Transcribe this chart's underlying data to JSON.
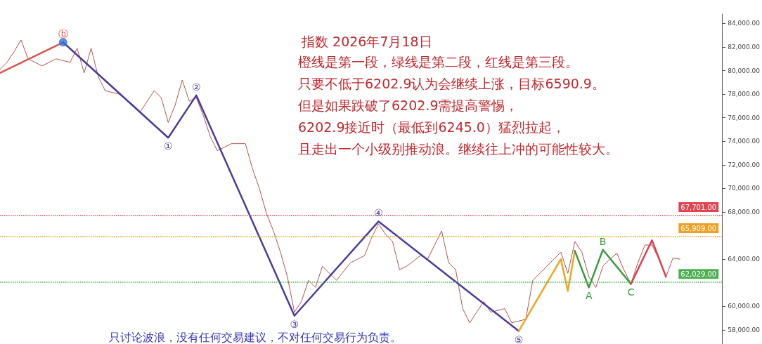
{
  "chart_data": {
    "type": "line",
    "title": "指数 2026年7月18日",
    "annotations": [
      "橙线是第一段，绿线是第二段，红线是第三段。",
      "只要不低于6202.9认为会继续上涨，目标6590.9。",
      "但是如果跌破了6202.9需提高警惕，",
      "6202.9接近时（最低到6245.0）猛烈拉起，",
      "且走出一个小级别推动浪。继续往上冲的可能性较大。",
      "只讨论波浪，没有任何交易建议，不对任何交易行为负责。",
      {
        "text": "ⓑ",
        "y": 82400
      },
      {
        "text": "①",
        "y": 74300
      },
      {
        "text": "②",
        "y": 77900
      },
      {
        "text": "③",
        "y": 59200
      },
      {
        "text": "④",
        "y": 67200
      },
      {
        "text": "⑤",
        "y": 57900
      },
      {
        "text": "A",
        "y": 61600
      },
      {
        "text": "B",
        "y": 64800
      },
      {
        "text": "C",
        "y": 61900
      }
    ],
    "categories": [
      null,
      null,
      null,
      null,
      null,
      null,
      null,
      null,
      null,
      null,
      null,
      null,
      null,
      null,
      null,
      null,
      null,
      null,
      null,
      null,
      null,
      null,
      null,
      null,
      null,
      null,
      null,
      null,
      null,
      null,
      null,
      null,
      null,
      null,
      null,
      null,
      null,
      null,
      null,
      null,
      null,
      null,
      null,
      null,
      null,
      null,
      null,
      null,
      null,
      null,
      null,
      null,
      null,
      null,
      null,
      null,
      null,
      null,
      null,
      null,
      null,
      null,
      null,
      null,
      null,
      null,
      null,
      null,
      null,
      null,
      null,
      null,
      null,
      null,
      null,
      null,
      null,
      null,
      null,
      null,
      null,
      null,
      null,
      null,
      null,
      null,
      null,
      null,
      null,
      null,
      null,
      null,
      null,
      null,
      null,
      null,
      null,
      null,
      null,
      null,
      null,
      null,
      null,
      null
    ],
    "series": [
      {
        "color": "#b5524d",
        "values": [
          80100,
          80700,
          81600,
          82600,
          81000,
          null,
          80400,
          null,
          81000,
          null,
          80700,
          81900,
          79800,
          81900,
          79500,
          78300,
          null,
          78000,
          null,
          77100,
          76500,
          null,
          78300,
          77700,
          75600,
          77100,
          79200,
          77400,
          77700,
          76200,
          74400,
          73200,
          null,
          73800,
          null,
          73800,
          71700,
          70000,
          67900,
          66400,
          64600,
          62500,
          59500,
          60400,
          62200,
          61600,
          63400,
          null,
          62200,
          null,
          63700,
          64000,
          64300,
          65800,
          67000,
          66100,
          65500,
          63100,
          63400,
          null,
          64300,
          64000,
          65200,
          66400,
          63700,
          63100,
          59800,
          58600,
          59500,
          60400,
          59500,
          null,
          59800,
          58600,
          null,
          58900,
          62200,
          null,
          63400,
          64000,
          64600,
          62800,
          65500,
          64600,
          62500,
          61600,
          63400,
          64000,
          64500,
          63100,
          61900,
          63700,
          65200,
          65200,
          64000,
          62500,
          64100,
          64000,
          null,
          null,
          null,
          null,
          null,
          null
        ]
      },
      {
        "color": "#d9534f",
        "values": [
          79800,
          null,
          null,
          null,
          null,
          null,
          null,
          null,
          null,
          82400,
          null,
          null,
          null,
          null,
          null,
          null,
          null,
          null,
          null,
          null,
          null,
          null,
          null,
          null,
          null,
          null,
          null,
          null,
          null,
          null,
          null,
          null,
          null,
          null,
          null,
          null,
          null,
          null,
          null,
          null,
          null,
          null,
          null,
          null,
          null,
          null,
          null,
          null,
          null,
          null,
          null,
          null,
          null,
          null,
          null,
          null,
          null,
          null,
          null,
          null,
          null,
          null,
          null,
          null,
          null,
          null,
          null,
          null,
          null,
          null,
          null,
          null,
          null,
          null,
          null,
          null,
          null,
          null,
          null,
          null,
          null,
          null,
          null,
          null,
          null,
          null,
          null,
          null,
          null,
          null,
          null,
          null,
          null,
          null,
          null,
          null,
          null,
          null,
          null,
          null,
          null,
          null,
          null,
          null
        ]
      },
      {
        "color": "#4b3c9a",
        "values": [
          null,
          null,
          null,
          null,
          null,
          null,
          null,
          null,
          null,
          82400,
          null,
          null,
          null,
          null,
          null,
          null,
          null,
          null,
          null,
          null,
          null,
          null,
          null,
          null,
          74300,
          null,
          null,
          null,
          77900,
          null,
          null,
          null,
          null,
          null,
          null,
          null,
          null,
          null,
          null,
          null,
          null,
          null,
          59200,
          null,
          null,
          null,
          null,
          null,
          null,
          null,
          null,
          null,
          null,
          null,
          67200,
          null,
          null,
          null,
          null,
          null,
          null,
          null,
          null,
          null,
          null,
          null,
          null,
          null,
          null,
          null,
          null,
          null,
          null,
          null,
          57900,
          null,
          null,
          null,
          null,
          null,
          null,
          null,
          null,
          null,
          null,
          null,
          null,
          null,
          null,
          null,
          null,
          null,
          null,
          null,
          null,
          null,
          null,
          null,
          null,
          null,
          null,
          null,
          null,
          null
        ]
      },
      {
        "color": "#f0a520",
        "values": [
          null,
          null,
          null,
          null,
          null,
          null,
          null,
          null,
          null,
          null,
          null,
          null,
          null,
          null,
          null,
          null,
          null,
          null,
          null,
          null,
          null,
          null,
          null,
          null,
          null,
          null,
          null,
          null,
          null,
          null,
          null,
          null,
          null,
          null,
          null,
          null,
          null,
          null,
          null,
          null,
          null,
          null,
          null,
          null,
          null,
          null,
          null,
          null,
          null,
          null,
          null,
          null,
          null,
          null,
          null,
          null,
          null,
          null,
          null,
          null,
          null,
          null,
          null,
          null,
          null,
          null,
          null,
          null,
          null,
          null,
          null,
          null,
          null,
          null,
          57900,
          null,
          null,
          null,
          null,
          null,
          64000,
          61300,
          64700,
          null,
          null,
          null,
          null,
          null,
          null,
          null,
          null,
          null,
          null,
          null,
          null,
          null,
          null,
          null,
          null,
          null,
          null,
          null,
          null,
          null
        ]
      },
      {
        "color": "#3c9a3c",
        "values": [
          null,
          null,
          null,
          null,
          null,
          null,
          null,
          null,
          null,
          null,
          null,
          null,
          null,
          null,
          null,
          null,
          null,
          null,
          null,
          null,
          null,
          null,
          null,
          null,
          null,
          null,
          null,
          null,
          null,
          null,
          null,
          null,
          null,
          null,
          null,
          null,
          null,
          null,
          null,
          null,
          null,
          null,
          null,
          null,
          null,
          null,
          null,
          null,
          null,
          null,
          null,
          null,
          null,
          null,
          null,
          null,
          null,
          null,
          null,
          null,
          null,
          null,
          null,
          null,
          null,
          null,
          null,
          null,
          null,
          null,
          null,
          null,
          null,
          null,
          null,
          null,
          null,
          null,
          null,
          null,
          null,
          null,
          64700,
          null,
          61600,
          null,
          64800,
          null,
          null,
          null,
          61900,
          null,
          null,
          null,
          null,
          null,
          null,
          null,
          null,
          null,
          null,
          null,
          null,
          null
        ]
      },
      {
        "color": "#e04050",
        "values": [
          null,
          null,
          null,
          null,
          null,
          null,
          null,
          null,
          null,
          null,
          null,
          null,
          null,
          null,
          null,
          null,
          null,
          null,
          null,
          null,
          null,
          null,
          null,
          null,
          null,
          null,
          null,
          null,
          null,
          null,
          null,
          null,
          null,
          null,
          null,
          null,
          null,
          null,
          null,
          null,
          null,
          null,
          null,
          null,
          null,
          null,
          null,
          null,
          null,
          null,
          null,
          null,
          null,
          null,
          null,
          null,
          null,
          null,
          null,
          null,
          null,
          null,
          null,
          null,
          null,
          null,
          null,
          null,
          null,
          null,
          null,
          null,
          null,
          null,
          null,
          null,
          null,
          null,
          null,
          null,
          null,
          null,
          null,
          null,
          null,
          null,
          null,
          null,
          null,
          null,
          61900,
          null,
          null,
          65600,
          null,
          62500,
          null,
          null,
          null,
          null,
          null,
          null,
          null,
          null
        ]
      },
      {
        "color": "#2f6fe0",
        "type": "scatter",
        "values": [
          null,
          null,
          null,
          null,
          null,
          null,
          null,
          null,
          null,
          82400,
          null,
          null,
          null,
          null,
          null,
          null,
          null,
          null,
          null,
          null,
          null,
          null,
          null,
          null,
          null,
          null,
          null,
          null,
          null,
          null,
          null,
          null,
          null,
          null,
          null,
          null,
          null,
          null,
          null,
          null,
          null,
          null,
          null,
          null,
          null,
          null,
          null,
          null,
          null,
          null,
          null,
          null,
          null,
          null,
          null,
          null,
          null,
          null,
          null,
          null,
          null,
          null,
          null,
          null,
          null,
          null,
          null,
          null,
          null,
          null,
          null,
          null,
          null,
          null,
          null,
          null,
          null,
          null,
          null,
          null,
          null,
          null,
          null,
          null,
          null,
          null,
          null,
          null,
          null,
          null,
          null,
          null,
          null,
          null,
          null,
          null,
          null,
          null,
          null,
          null,
          null,
          null,
          null,
          null
        ]
      }
    ],
    "ref_lines": [
      {
        "axis": "y",
        "value": 67701,
        "label": "67,701.00",
        "color": "#e0454f",
        "line_style": "dotted"
      },
      {
        "axis": "y",
        "value": 65909,
        "label": "65,909.00",
        "color": "#f0a020",
        "line_style": "dotted"
      },
      {
        "axis": "y",
        "value": 62029,
        "label": "62,029.00",
        "color": "#4caf50",
        "line_style": "dotted"
      }
    ],
    "ylim": [
      56800,
      84800
    ],
    "yticks": [
      {
        "value": 58000,
        "label": "58,000.00"
      },
      {
        "value": 60000,
        "label": "60,000.00"
      },
      {
        "value": 64000,
        "label": "64,000.00"
      },
      {
        "value": 68000,
        "label": "68,000.00"
      },
      {
        "value": 70000,
        "label": "70,000.00"
      },
      {
        "value": 72000,
        "label": "72,000.00"
      },
      {
        "value": 74000,
        "label": "74,000.00"
      },
      {
        "value": 76000,
        "label": "76,000.00"
      },
      {
        "value": 78000,
        "label": "78,000.00"
      },
      {
        "value": 80000,
        "label": "80,000.00"
      },
      {
        "value": 82000,
        "label": "82,000.00"
      },
      {
        "value": 84000,
        "label": "84,000.00"
      }
    ],
    "tick_labels": "y",
    "line_style": "solid"
  }
}
